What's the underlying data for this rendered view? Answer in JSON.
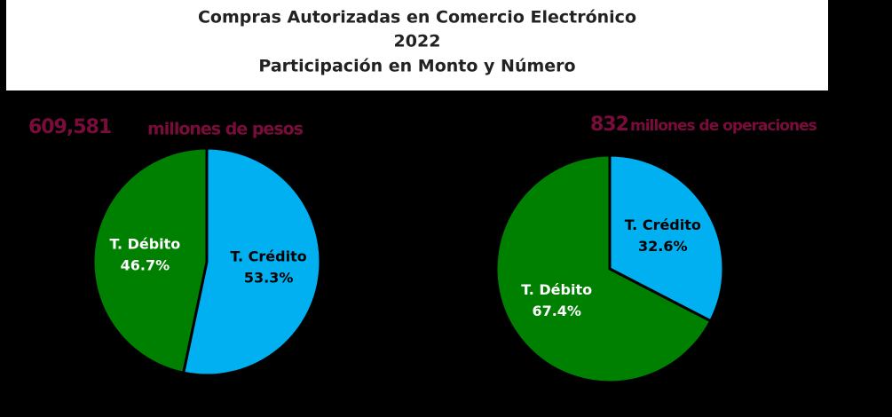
{
  "header": {
    "lines": [
      "Compras Autorizadas en Comercio Electrónico",
      "2022",
      "Participación en Monto y Número"
    ]
  },
  "chart_data": [
    {
      "type": "pie",
      "total": "609,581",
      "unit": "millones de pesos",
      "categories": [
        "T. Crédito",
        "T. Débito"
      ],
      "values": [
        53.3,
        46.7
      ],
      "value_labels": [
        "53.3%",
        "46.7%"
      ],
      "colors": [
        "#00b0f0",
        "#008000"
      ]
    },
    {
      "type": "pie",
      "total": "832",
      "unit": "millones de operaciones",
      "categories": [
        "T. Crédito",
        "T. Débito"
      ],
      "values": [
        32.6,
        67.4
      ],
      "value_labels": [
        "32.6%",
        "67.4%"
      ],
      "colors": [
        "#00b0f0",
        "#008000"
      ]
    }
  ]
}
